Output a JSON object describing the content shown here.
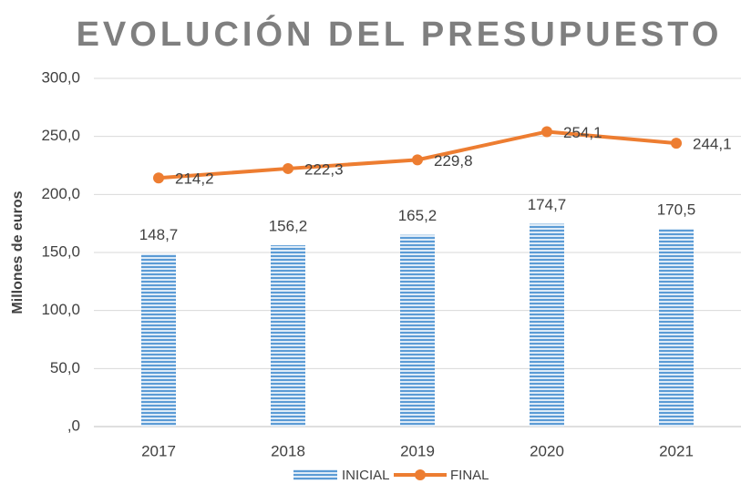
{
  "chart_data": {
    "type": "bar",
    "title": "EVOLUCIÓN DEL PRESUPUESTO",
    "y_label": "Millones de euros",
    "categories": [
      "2017",
      "2018",
      "2019",
      "2020",
      "2021"
    ],
    "series": [
      {
        "name": "INICIAL",
        "type": "bar",
        "color": "#5b9bd5",
        "values": [
          148.7,
          156.2,
          165.2,
          174.7,
          170.5
        ],
        "value_labels": [
          "148,7",
          "156,2",
          "165,2",
          "174,7",
          "170,5"
        ]
      },
      {
        "name": "FINAL",
        "type": "line",
        "color": "#ed7d31",
        "values": [
          214.2,
          222.3,
          229.8,
          254.1,
          244.1
        ],
        "value_labels": [
          "214,2",
          "222,3",
          "229,8",
          "254,1",
          "244,1"
        ]
      }
    ],
    "ylim": [
      0,
      300
    ],
    "yticks": [
      {
        "value": 0,
        "label": ",0"
      },
      {
        "value": 50,
        "label": "50,0"
      },
      {
        "value": 100,
        "label": "100,0"
      },
      {
        "value": 150,
        "label": "150,0"
      },
      {
        "value": 200,
        "label": "200,0"
      },
      {
        "value": 250,
        "label": "250,0"
      },
      {
        "value": 300,
        "label": "300,0"
      }
    ],
    "grid": true,
    "legend": "bottom"
  }
}
